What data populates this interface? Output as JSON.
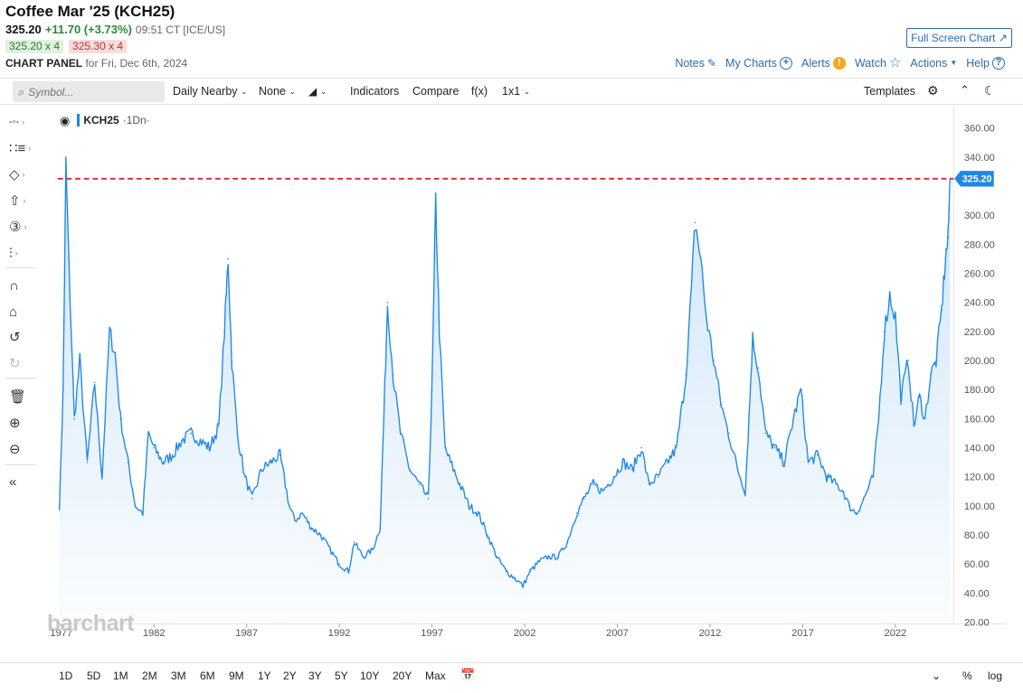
{
  "header": {
    "title": "Coffee Mar '25 (KCH25)",
    "last": "325.20",
    "change": "+11.70 (+3.73%)",
    "time": "09:51 CT [ICE/US]",
    "bid": "325.20 x 4",
    "ask": "325.30 x 4",
    "panel_label": "CHART PANEL",
    "panel_date": "for Fri, Dec 6th, 2024",
    "fullscreen_label": "Full Screen Chart"
  },
  "top_links": {
    "notes": "Notes",
    "my_charts": "My Charts",
    "alerts": "Alerts",
    "watch": "Watch",
    "actions": "Actions",
    "help": "Help"
  },
  "toolbar": {
    "symbol_placeholder": "Symbol...",
    "aggregation": "Daily Nearby",
    "overlay": "None",
    "indicators": "Indicators",
    "compare": "Compare",
    "fx": "f(x)",
    "layout": "1x1",
    "templates": "Templates"
  },
  "legend": {
    "symbol": "KCH25",
    "timeframe": "·1Dn·"
  },
  "watermark": "barchart",
  "bottom_ranges": [
    "1D",
    "5D",
    "1M",
    "2M",
    "3M",
    "6M",
    "9M",
    "1Y",
    "2Y",
    "3Y",
    "5Y",
    "10Y",
    "20Y",
    "Max"
  ],
  "bottom_right": {
    "percent": "%",
    "log": "log"
  },
  "colors": {
    "line": "#1e88e5",
    "last_price_line": "#e0212c",
    "link": "#2a6db5",
    "up": "#2e8b3a"
  },
  "chart_data": {
    "type": "area",
    "series_label": "KCH25",
    "last_price_label": "325.20",
    "last_price": 325.2,
    "ylim": [
      20,
      370
    ],
    "y_ticks": [
      "20.00",
      "40.00",
      "60.00",
      "80.00",
      "100.00",
      "120.00",
      "140.00",
      "160.00",
      "180.00",
      "200.00",
      "220.00",
      "240.00",
      "260.00",
      "280.00",
      "300.00",
      "320.00",
      "340.00",
      "360.00"
    ],
    "x_ticks": [
      "1977",
      "1982",
      "1987",
      "1992",
      "1997",
      "2002",
      "2007",
      "2012",
      "2017",
      "2022"
    ],
    "xlim": [
      1976.9,
      2024.95
    ],
    "x": [
      1976.9,
      1977.1,
      1977.25,
      1977.4,
      1977.7,
      1978.0,
      1978.4,
      1978.8,
      1979.2,
      1979.6,
      1979.9,
      1980.2,
      1980.6,
      1981.0,
      1981.4,
      1981.7,
      1982.0,
      1982.5,
      1983.0,
      1983.5,
      1984.0,
      1984.5,
      1985.0,
      1985.5,
      1985.8,
      1986.0,
      1986.2,
      1986.5,
      1986.9,
      1987.3,
      1987.8,
      1988.3,
      1988.8,
      1989.3,
      1989.6,
      1990.0,
      1990.5,
      1991.0,
      1991.5,
      1992.0,
      1992.5,
      1992.8,
      1993.3,
      1993.8,
      1994.2,
      1994.4,
      1994.6,
      1994.9,
      1995.3,
      1995.8,
      1996.3,
      1996.8,
      1997.0,
      1997.2,
      1997.4,
      1997.7,
      1998.0,
      1998.5,
      1999.0,
      1999.5,
      2000.0,
      2000.5,
      2001.0,
      2001.5,
      2001.9,
      2002.3,
      2002.8,
      2003.3,
      2003.8,
      2004.3,
      2004.8,
      2005.2,
      2005.7,
      2006.2,
      2006.8,
      2007.3,
      2007.8,
      2008.3,
      2008.7,
      2009.2,
      2009.7,
      2010.2,
      2010.7,
      2011.0,
      2011.2,
      2011.5,
      2011.8,
      2012.2,
      2012.6,
      2013.0,
      2013.5,
      2013.9,
      2014.1,
      2014.3,
      2014.6,
      2015.0,
      2015.5,
      2016.0,
      2016.5,
      2016.9,
      2017.3,
      2017.8,
      2018.3,
      2018.8,
      2019.2,
      2019.5,
      2019.9,
      2020.3,
      2020.8,
      2021.1,
      2021.4,
      2021.7,
      2022.0,
      2022.3,
      2022.7,
      2023.0,
      2023.3,
      2023.6,
      2023.9,
      2024.2,
      2024.5,
      2024.7,
      2024.85,
      2024.95
    ],
    "y": [
      100,
      180,
      335,
      270,
      160,
      200,
      130,
      185,
      120,
      220,
      205,
      160,
      130,
      100,
      95,
      150,
      140,
      130,
      135,
      145,
      150,
      145,
      140,
      155,
      220,
      270,
      200,
      150,
      120,
      105,
      125,
      130,
      135,
      100,
      90,
      95,
      85,
      80,
      70,
      60,
      55,
      75,
      65,
      70,
      85,
      160,
      240,
      190,
      150,
      125,
      115,
      105,
      180,
      310,
      220,
      140,
      130,
      115,
      100,
      95,
      80,
      65,
      55,
      50,
      45,
      55,
      62,
      65,
      65,
      75,
      95,
      105,
      115,
      110,
      120,
      130,
      125,
      140,
      115,
      120,
      130,
      140,
      190,
      250,
      295,
      270,
      230,
      200,
      170,
      150,
      125,
      110,
      160,
      215,
      195,
      150,
      140,
      130,
      160,
      180,
      130,
      135,
      120,
      115,
      110,
      100,
      95,
      105,
      120,
      160,
      220,
      245,
      230,
      175,
      200,
      155,
      175,
      160,
      190,
      200,
      235,
      270,
      285,
      325.2
    ]
  }
}
